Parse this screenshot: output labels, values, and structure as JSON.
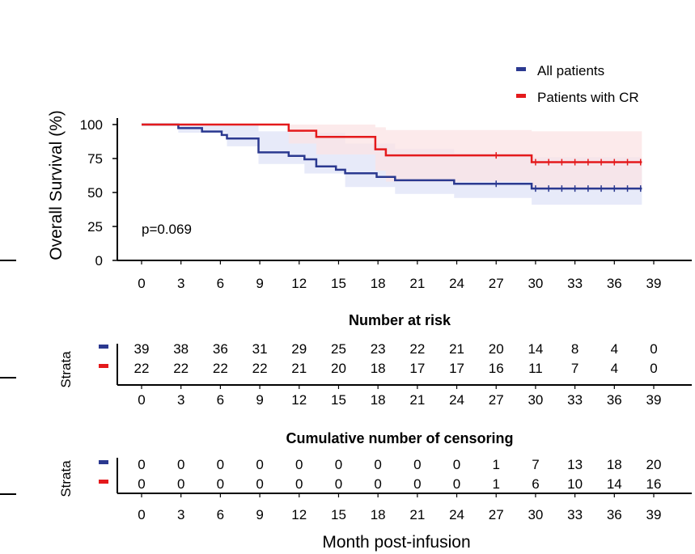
{
  "chart_data": {
    "type": "line",
    "subtype": "kaplan-meier",
    "ylabel": "Overall Survival (%)",
    "xlabel": "Month post-infusion",
    "x_ticks": [
      0,
      3,
      6,
      9,
      12,
      15,
      18,
      21,
      24,
      27,
      30,
      33,
      36,
      39
    ],
    "y_ticks": [
      0,
      25,
      50,
      75,
      100
    ],
    "xlim": [
      0,
      39
    ],
    "ylim": [
      0,
      100
    ],
    "pvalue_text": "p=0.069",
    "legend_position": "top-right",
    "series": [
      {
        "name": "All patients",
        "color": "#2B3990",
        "ci_color": "#dfe3f7",
        "steps": [
          [
            0,
            100
          ],
          [
            2.8,
            100
          ],
          [
            2.8,
            97.4
          ],
          [
            4.6,
            97.4
          ],
          [
            4.6,
            94.9
          ],
          [
            6.1,
            94.9
          ],
          [
            6.1,
            92.3
          ],
          [
            6.5,
            92.3
          ],
          [
            6.5,
            89.7
          ],
          [
            8.9,
            89.7
          ],
          [
            8.9,
            79.5
          ],
          [
            11.2,
            79.5
          ],
          [
            11.2,
            76.9
          ],
          [
            12.4,
            76.9
          ],
          [
            12.4,
            74.4
          ],
          [
            13.3,
            74.4
          ],
          [
            13.3,
            69.2
          ],
          [
            14.8,
            69.2
          ],
          [
            14.8,
            66.7
          ],
          [
            15.5,
            66.7
          ],
          [
            15.5,
            64.1
          ],
          [
            17.9,
            64.1
          ],
          [
            17.9,
            61.5
          ],
          [
            19.3,
            61.5
          ],
          [
            19.3,
            59.0
          ],
          [
            23.8,
            59.0
          ],
          [
            23.8,
            56.4
          ],
          [
            29.7,
            56.4
          ],
          [
            29.7,
            52.9
          ],
          [
            38.1,
            52.9
          ]
        ],
        "ci_upper": [
          [
            0,
            100
          ],
          [
            8.9,
            100
          ],
          [
            8.9,
            95
          ],
          [
            12.4,
            94
          ],
          [
            15.5,
            86
          ],
          [
            19.3,
            82
          ],
          [
            23.8,
            79
          ],
          [
            29.7,
            76
          ],
          [
            38.1,
            76
          ]
        ],
        "ci_lower": [
          [
            0,
            100
          ],
          [
            2.8,
            94
          ],
          [
            6.5,
            84
          ],
          [
            8.9,
            71
          ],
          [
            12.4,
            64
          ],
          [
            15.5,
            54
          ],
          [
            19.3,
            49
          ],
          [
            23.8,
            46
          ],
          [
            29.7,
            41
          ],
          [
            38.1,
            41
          ]
        ],
        "censor_x": [
          27,
          30,
          31,
          32,
          33,
          34,
          35,
          36,
          37,
          38
        ]
      },
      {
        "name": "Patients with CR",
        "color": "#E41A1C",
        "ci_color": "#fbe3e4",
        "steps": [
          [
            0,
            100
          ],
          [
            11.2,
            100
          ],
          [
            11.2,
            95.5
          ],
          [
            13.3,
            95.5
          ],
          [
            13.3,
            90.9
          ],
          [
            17.8,
            90.9
          ],
          [
            17.8,
            81.8
          ],
          [
            18.6,
            81.8
          ],
          [
            18.6,
            77.3
          ],
          [
            29.7,
            77.3
          ],
          [
            29.7,
            72.3
          ],
          [
            38.1,
            72.3
          ]
        ],
        "ci_upper": [
          [
            0,
            100
          ],
          [
            15,
            100
          ],
          [
            17.8,
            98
          ],
          [
            18.6,
            96
          ],
          [
            29.7,
            95
          ],
          [
            38.1,
            95
          ]
        ],
        "ci_lower": [
          [
            0,
            100
          ],
          [
            11.2,
            86
          ],
          [
            13.3,
            78
          ],
          [
            17.8,
            66
          ],
          [
            18.6,
            58
          ],
          [
            29.7,
            52
          ],
          [
            38.1,
            52
          ]
        ],
        "censor_x": [
          27,
          30,
          31,
          32,
          33,
          34,
          35,
          36,
          37,
          38
        ]
      }
    ],
    "risk_table": {
      "title": "Number at risk",
      "strata_label": "Strata",
      "rows": [
        [
          "39",
          "38",
          "36",
          "31",
          "29",
          "25",
          "23",
          "22",
          "21",
          "20",
          "14",
          "8",
          "4",
          "0"
        ],
        [
          "22",
          "22",
          "22",
          "22",
          "21",
          "20",
          "18",
          "17",
          "17",
          "16",
          "11",
          "7",
          "4",
          "0"
        ]
      ]
    },
    "censor_table": {
      "title": "Cumulative number of censoring",
      "strata_label": "Strata",
      "rows": [
        [
          "0",
          "0",
          "0",
          "0",
          "0",
          "0",
          "0",
          "0",
          "0",
          "1",
          "7",
          "13",
          "18",
          "20"
        ],
        [
          "0",
          "0",
          "0",
          "0",
          "0",
          "0",
          "0",
          "0",
          "0",
          "1",
          "6",
          "10",
          "14",
          "16"
        ]
      ]
    }
  }
}
